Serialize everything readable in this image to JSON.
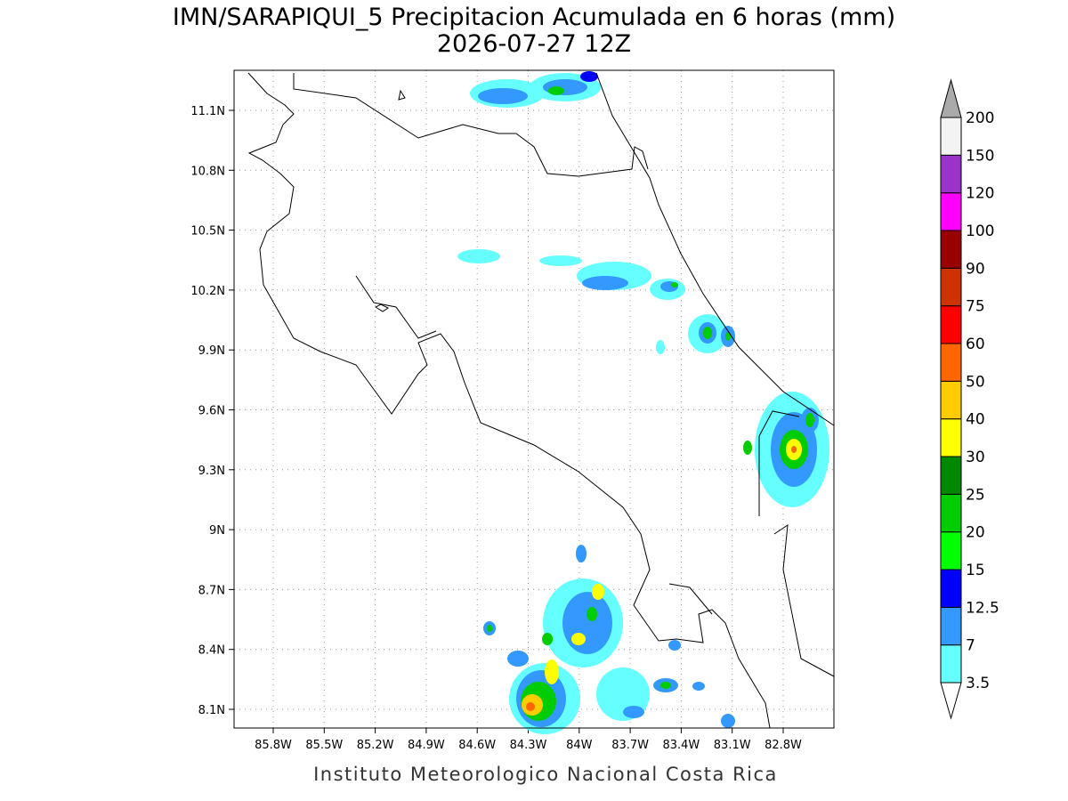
{
  "title": "IMN/SARAPIQUI_5 Precipitacion Acumulada en 6 horas (mm)",
  "subtitle": "2026-07-27 12Z",
  "footer": "Instituto Meteorologico Nacional Costa Rica",
  "lon_ticks": [
    "85.8W",
    "85.5W",
    "85.2W",
    "84.9W",
    "84.6W",
    "84.3W",
    "84W",
    "83.7W",
    "83.4W",
    "83.1W",
    "82.8W"
  ],
  "lat_ticks": [
    "11.1N",
    "10.8N",
    "10.5N",
    "10.2N",
    "9.9N",
    "9.6N",
    "9.3N",
    "9N",
    "8.7N",
    "8.4N",
    "8.1N"
  ],
  "colorbar": {
    "labels": [
      "3.5",
      "7",
      "12.5",
      "15",
      "20",
      "25",
      "30",
      "40",
      "50",
      "60",
      "75",
      "90",
      "100",
      "120",
      "150",
      "200"
    ],
    "colors": [
      "#66ffff",
      "#3399ff",
      "#0000ff",
      "#00ff00",
      "#00cc00",
      "#008800",
      "#ffff00",
      "#ffcc00",
      "#ff6600",
      "#ff0000",
      "#cc3300",
      "#990000",
      "#ff00ff",
      "#9933cc",
      "#f3f3f3"
    ],
    "below_color": "#ffffff",
    "above_color": "#aaaaaa"
  }
}
